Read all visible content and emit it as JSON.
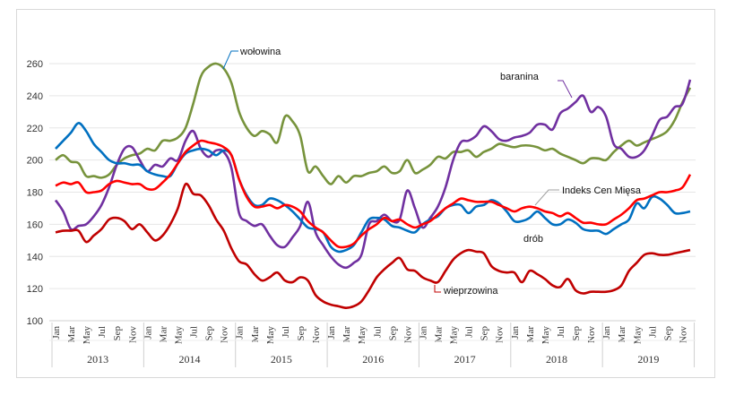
{
  "chart_data": {
    "type": "line",
    "title": "",
    "xlabel": "",
    "ylabel": "",
    "ylim": [
      100,
      260
    ],
    "yticks": [
      100,
      120,
      140,
      160,
      180,
      200,
      220,
      240,
      260
    ],
    "grid": true,
    "legend": "inline labels",
    "months": [
      "Jan",
      "Mar",
      "May",
      "Jul",
      "Sep",
      "Nov"
    ],
    "years": [
      "2013",
      "2014",
      "2015",
      "2016",
      "2017",
      "2018",
      "2019"
    ],
    "x_start": "2013-01",
    "x_end": "2019-12",
    "series": [
      {
        "name": "wołowina",
        "color": "#77933c",
        "values": [
          200,
          203,
          199,
          198,
          190,
          190,
          189,
          191,
          197,
          201,
          203,
          204,
          207,
          206,
          212,
          212,
          214,
          220,
          235,
          252,
          258,
          260,
          257,
          248,
          230,
          220,
          215,
          218,
          216,
          211,
          227,
          224,
          215,
          193,
          196,
          190,
          185,
          190,
          186,
          190,
          190,
          192,
          193,
          196,
          192,
          193,
          200,
          192,
          194,
          197,
          202,
          201,
          205,
          205,
          206,
          202,
          205,
          207,
          210,
          209,
          208,
          209,
          209,
          208,
          206,
          207,
          204,
          202,
          200,
          198,
          201,
          201,
          200,
          205,
          209,
          212,
          209,
          211,
          213,
          215,
          218,
          225,
          236,
          245
        ]
      },
      {
        "name": "baranina",
        "color": "#7030a0",
        "values": [
          175,
          168,
          157,
          159,
          160,
          165,
          172,
          183,
          197,
          207,
          208,
          200,
          193,
          197,
          196,
          201,
          200,
          212,
          218,
          207,
          202,
          206,
          205,
          195,
          167,
          162,
          159,
          160,
          153,
          147,
          146,
          152,
          159,
          174,
          155,
          147,
          140,
          135,
          133,
          136,
          141,
          160,
          162,
          166,
          162,
          163,
          181,
          170,
          158,
          164,
          171,
          183,
          200,
          211,
          212,
          215,
          221,
          218,
          213,
          212,
          214,
          215,
          217,
          222,
          222,
          219,
          229,
          232,
          236,
          240,
          230,
          233,
          227,
          210,
          207,
          202,
          202,
          206,
          215,
          225,
          227,
          233,
          235,
          250
        ]
      },
      {
        "name": "drób",
        "color": "#0070c0",
        "values": [
          207,
          212,
          217,
          223,
          218,
          210,
          205,
          200,
          198,
          198,
          197,
          197,
          193,
          191,
          190,
          190,
          198,
          204,
          206,
          207,
          206,
          203,
          206,
          203,
          188,
          178,
          172,
          172,
          176,
          175,
          172,
          168,
          163,
          158,
          157,
          155,
          146,
          143,
          144,
          147,
          155,
          163,
          164,
          163,
          159,
          158,
          156,
          155,
          160,
          163,
          165,
          170,
          172,
          172,
          167,
          171,
          172,
          175,
          173,
          168,
          162,
          162,
          164,
          168,
          164,
          160,
          160,
          163,
          161,
          157,
          156,
          156,
          154,
          157,
          160,
          163,
          173,
          170,
          177,
          176,
          172,
          167,
          167,
          168
        ]
      },
      {
        "name": "Indeks Cen Mięsa",
        "color": "#ff0000",
        "values": [
          184,
          186,
          185,
          186,
          180,
          180,
          181,
          185,
          187,
          186,
          185,
          185,
          182,
          182,
          186,
          191,
          198,
          205,
          209,
          212,
          211,
          210,
          208,
          203,
          188,
          177,
          171,
          171,
          172,
          170,
          172,
          171,
          168,
          162,
          158,
          155,
          150,
          146,
          146,
          148,
          153,
          157,
          160,
          164,
          162,
          163,
          160,
          158,
          160,
          162,
          166,
          170,
          173,
          176,
          175,
          174,
          174,
          174,
          172,
          170,
          168,
          170,
          171,
          170,
          168,
          167,
          165,
          167,
          164,
          161,
          161,
          160,
          160,
          163,
          166,
          170,
          175,
          176,
          178,
          180,
          180,
          181,
          183,
          191
        ]
      },
      {
        "name": "wieprzowina",
        "color": "#c00000",
        "values": [
          155,
          156,
          156,
          156,
          149,
          153,
          157,
          163,
          164,
          162,
          157,
          160,
          155,
          150,
          153,
          160,
          170,
          185,
          179,
          178,
          172,
          163,
          156,
          145,
          137,
          135,
          129,
          125,
          127,
          130,
          125,
          124,
          127,
          125,
          116,
          112,
          110,
          109,
          108,
          109,
          112,
          119,
          127,
          132,
          136,
          139,
          132,
          131,
          127,
          125,
          124,
          131,
          138,
          142,
          144,
          143,
          142,
          134,
          131,
          130,
          130,
          124,
          131,
          129,
          126,
          122,
          121,
          126,
          119,
          117,
          118,
          118,
          118,
          119,
          122,
          131,
          136,
          141,
          142,
          141,
          141,
          142,
          143,
          144
        ]
      }
    ]
  }
}
